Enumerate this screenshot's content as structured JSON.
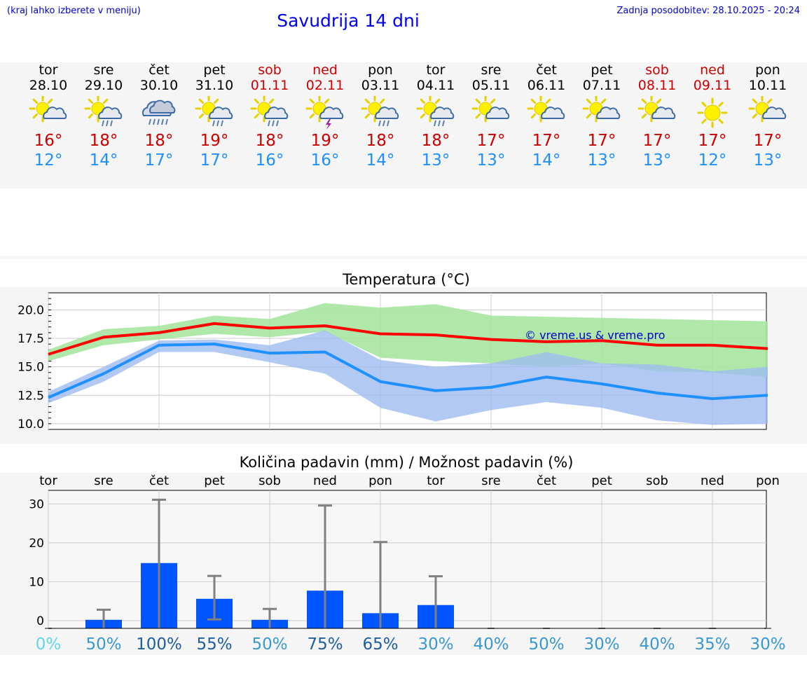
{
  "header": {
    "hint": "(kraj lahko izberete v meniju)",
    "title": "Savudrija 14 dni",
    "updated": "Zadnja posodobitev: 28.10.2025 - 20:24"
  },
  "colors": {
    "max": "#ff0000",
    "min": "#1e90ff",
    "max_band": "#a6e6a0",
    "min_band": "#9fbbf0",
    "rain_bar": "#0055ff",
    "whisker": "#808080",
    "weekend": "#cc0000",
    "title": "#0000ee"
  },
  "days": [
    {
      "name": "tor",
      "date": "28.10",
      "weekend": false,
      "icon": "sun-cloud-icon",
      "max": "16°",
      "min": "12°"
    },
    {
      "name": "sre",
      "date": "29.10",
      "weekend": false,
      "icon": "sun-cloud-rain-icon",
      "max": "18°",
      "min": "14°"
    },
    {
      "name": "čet",
      "date": "30.10",
      "weekend": false,
      "icon": "heavy-rain-cloud-icon",
      "max": "18°",
      "min": "17°"
    },
    {
      "name": "pet",
      "date": "31.10",
      "weekend": false,
      "icon": "sun-cloud-rain-icon",
      "max": "19°",
      "min": "17°"
    },
    {
      "name": "sob",
      "date": "01.11",
      "weekend": true,
      "icon": "sun-cloud-rain-icon",
      "max": "18°",
      "min": "16°"
    },
    {
      "name": "ned",
      "date": "02.11",
      "weekend": true,
      "icon": "sun-cloud-storm-icon",
      "max": "19°",
      "min": "16°"
    },
    {
      "name": "pon",
      "date": "03.11",
      "weekend": false,
      "icon": "sun-cloud-rain-icon",
      "max": "18°",
      "min": "14°"
    },
    {
      "name": "tor",
      "date": "04.11",
      "weekend": false,
      "icon": "sun-cloud-rain-icon",
      "max": "18°",
      "min": "13°"
    },
    {
      "name": "sre",
      "date": "05.11",
      "weekend": false,
      "icon": "sun-cloud-icon",
      "max": "17°",
      "min": "13°"
    },
    {
      "name": "čet",
      "date": "06.11",
      "weekend": false,
      "icon": "sun-cloud-icon",
      "max": "17°",
      "min": "14°"
    },
    {
      "name": "pet",
      "date": "07.11",
      "weekend": false,
      "icon": "sun-cloud-icon",
      "max": "17°",
      "min": "13°"
    },
    {
      "name": "sob",
      "date": "08.11",
      "weekend": true,
      "icon": "sun-cloud-icon",
      "max": "17°",
      "min": "13°"
    },
    {
      "name": "ned",
      "date": "09.11",
      "weekend": true,
      "icon": "sun-icon",
      "max": "17°",
      "min": "12°"
    },
    {
      "name": "pon",
      "date": "10.11",
      "weekend": false,
      "icon": "sun-cloud-icon",
      "max": "17°",
      "min": "13°"
    }
  ],
  "chart_data": [
    {
      "type": "line",
      "title": "Temperatura (°C)",
      "xlabel": "",
      "ylabel": "",
      "ylim": [
        9.5,
        21.5
      ],
      "yticks": [
        "10.0",
        "12.5",
        "15.0",
        "17.5",
        "20.0"
      ],
      "x": [
        0,
        1,
        2,
        3,
        4,
        5,
        6,
        7,
        8,
        9,
        10,
        11,
        12,
        13
      ],
      "series": [
        {
          "name": "max",
          "values": [
            16.1,
            17.6,
            18.0,
            18.8,
            18.4,
            18.6,
            17.9,
            17.8,
            17.4,
            17.2,
            17.3,
            16.9,
            16.9,
            16.6
          ]
        },
        {
          "name": "min",
          "values": [
            12.3,
            14.4,
            16.9,
            17.0,
            16.2,
            16.3,
            13.7,
            12.9,
            13.2,
            14.1,
            13.5,
            12.7,
            12.2,
            12.5
          ]
        }
      ],
      "bands": [
        {
          "name": "max_range",
          "upper": [
            16.5,
            18.3,
            18.6,
            19.5,
            19.2,
            20.6,
            20.2,
            20.5,
            19.5,
            19.4,
            19.3,
            19.2,
            19.1,
            19.0
          ],
          "lower": [
            15.5,
            16.9,
            17.4,
            17.9,
            17.6,
            18.1,
            15.8,
            15.5,
            15.3,
            15.0,
            15.3,
            14.6,
            14.5,
            14.1
          ]
        },
        {
          "name": "min_range",
          "upper": [
            12.8,
            15.0,
            17.3,
            17.4,
            16.9,
            18.2,
            15.6,
            15.0,
            15.3,
            16.3,
            15.3,
            15.2,
            14.6,
            15.0
          ],
          "lower": [
            11.8,
            13.7,
            16.3,
            16.3,
            15.4,
            14.4,
            11.4,
            10.2,
            11.2,
            11.9,
            11.4,
            10.3,
            9.9,
            10.0
          ]
        }
      ],
      "annotation": "© vreme.us & vreme.pro",
      "grid": true
    },
    {
      "type": "bar",
      "title": "Količina padavin (mm) / Možnost padavin (%)",
      "categories": [
        "tor",
        "sre",
        "čet",
        "pet",
        "sob",
        "ned",
        "pon",
        "tor",
        "sre",
        "čet",
        "pet",
        "sob",
        "ned",
        "pon"
      ],
      "ylim": [
        -2,
        33.5
      ],
      "yticks": [
        "0",
        "10",
        "20",
        "30"
      ],
      "values": [
        0,
        0.2,
        14.8,
        5.6,
        0.2,
        7.7,
        1.9,
        4.0,
        0,
        0,
        0,
        0,
        0,
        0
      ],
      "whisker_low": [
        0,
        0,
        0,
        0.3,
        0,
        0,
        0,
        0,
        0,
        0,
        0,
        0,
        0,
        0
      ],
      "whisker_high": [
        0,
        2.8,
        31.1,
        11.5,
        3.0,
        29.6,
        20.2,
        11.4,
        0,
        0,
        0,
        0,
        0,
        0
      ],
      "probabilities": [
        "0%",
        "50%",
        "100%",
        "55%",
        "50%",
        "75%",
        "65%",
        "30%",
        "40%",
        "50%",
        "30%",
        "40%",
        "35%",
        "30%"
      ],
      "probability_values": [
        0,
        50,
        100,
        55,
        50,
        75,
        65,
        30,
        40,
        50,
        30,
        40,
        35,
        30
      ]
    }
  ]
}
